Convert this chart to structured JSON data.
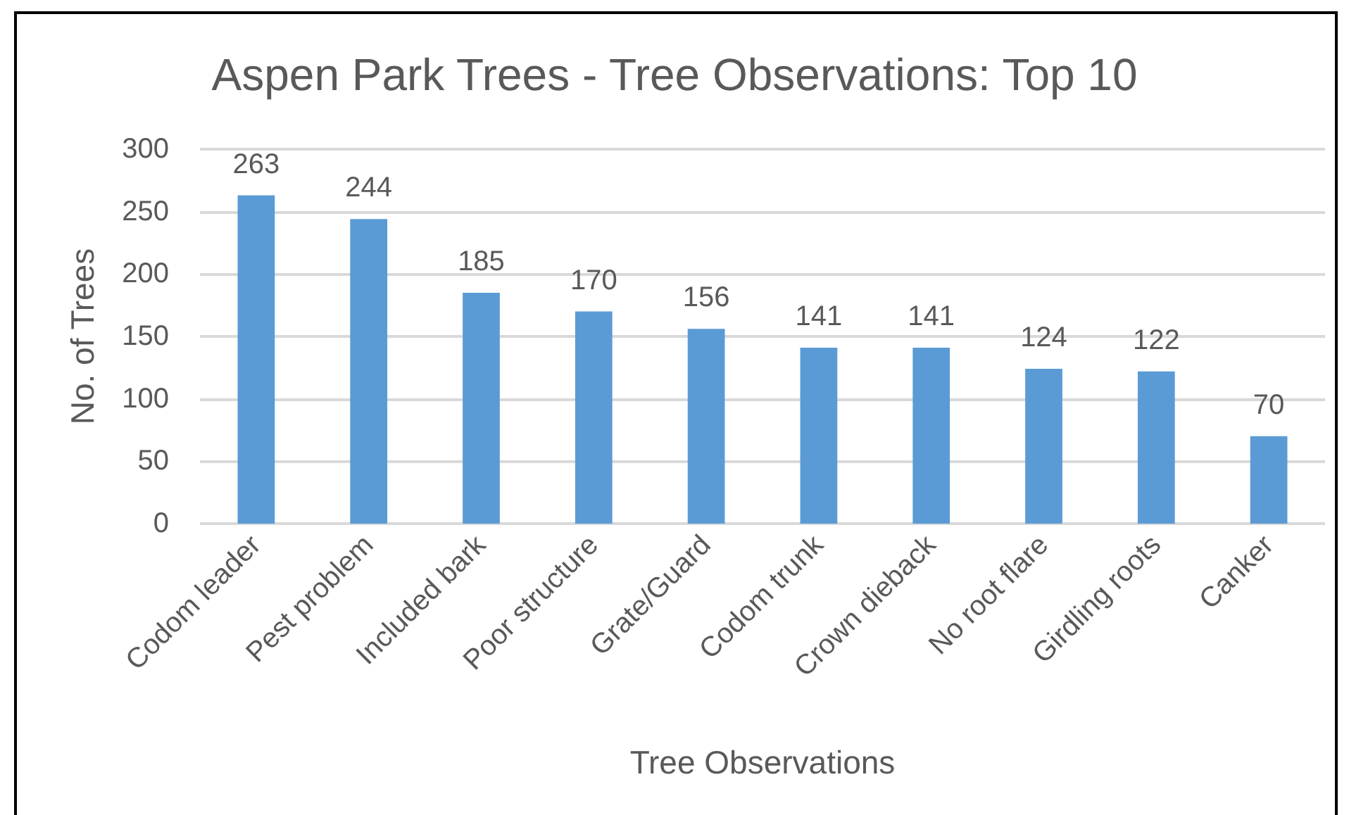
{
  "chart_data": {
    "type": "bar",
    "title": "Aspen Park Trees - Tree Observations: Top 10",
    "xlabel": "Tree Observations",
    "ylabel": "No. of Trees",
    "categories": [
      "Codom leader",
      "Pest problem",
      "Included bark",
      "Poor structure",
      "Grate/Guard",
      "Codom trunk",
      "Crown dieback",
      "No root flare",
      "Girdling roots",
      "Canker"
    ],
    "values": [
      263,
      244,
      185,
      170,
      156,
      141,
      141,
      124,
      122,
      70
    ],
    "color": "#5b9bd5",
    "ylim": [
      0,
      300
    ],
    "yticks": [
      0,
      50,
      100,
      150,
      200,
      250,
      300
    ],
    "grid": "y",
    "data_labels": true
  }
}
